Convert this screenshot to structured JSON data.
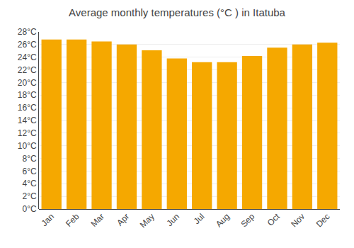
{
  "chart_data": {
    "type": "bar",
    "title": "Average monthly temperatures (°C ) in Itatuba",
    "categories": [
      "Jan",
      "Feb",
      "Mar",
      "Apr",
      "May",
      "Jun",
      "Jul",
      "Aug",
      "Sep",
      "Oct",
      "Nov",
      "Dec"
    ],
    "values": [
      26.8,
      26.8,
      26.5,
      26.0,
      25.1,
      23.8,
      23.2,
      23.2,
      24.2,
      25.5,
      26.0,
      26.3
    ],
    "color": "#F5A800",
    "ylim": [
      0,
      28
    ],
    "yticks": [
      {
        "value": 0,
        "label": "0°C"
      },
      {
        "value": 2,
        "label": "2°C"
      },
      {
        "value": 4,
        "label": "4°C"
      },
      {
        "value": 6,
        "label": "6°C"
      },
      {
        "value": 8,
        "label": "8°C"
      },
      {
        "value": 10,
        "label": "10°C"
      },
      {
        "value": 12,
        "label": "12°C"
      },
      {
        "value": 14,
        "label": "14°C"
      },
      {
        "value": 16,
        "label": "16°C"
      },
      {
        "value": 18,
        "label": "18°C"
      },
      {
        "value": 20,
        "label": "20°C"
      },
      {
        "value": 22,
        "label": "22°C"
      },
      {
        "value": 24,
        "label": "24°C"
      },
      {
        "value": 26,
        "label": "26°C"
      },
      {
        "value": 28,
        "label": "28°C"
      }
    ],
    "grid": true
  }
}
